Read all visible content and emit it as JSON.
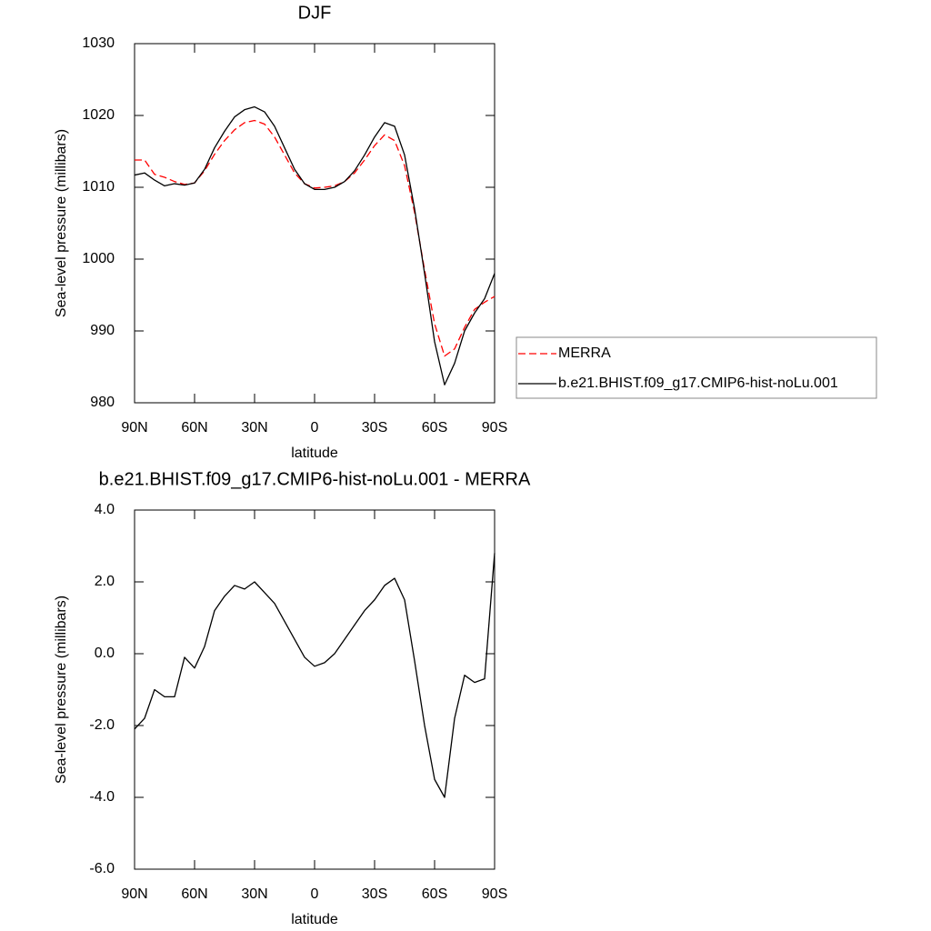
{
  "chart_data": [
    {
      "type": "line",
      "title": "DJF",
      "xlabel": "latitude",
      "ylabel": "Sea-level pressure (millibars)",
      "x": [
        90,
        85,
        80,
        75,
        70,
        65,
        60,
        55,
        50,
        45,
        40,
        35,
        30,
        25,
        20,
        15,
        10,
        5,
        0,
        -5,
        -10,
        -15,
        -20,
        -25,
        -30,
        -35,
        -40,
        -45,
        -50,
        -55,
        -60,
        -65,
        -70,
        -75,
        -80,
        -85,
        -90
      ],
      "xlim": [
        90,
        -90
      ],
      "xticks": [
        {
          "value": 90,
          "label": "90N"
        },
        {
          "value": 60,
          "label": "60N"
        },
        {
          "value": 30,
          "label": "30N"
        },
        0,
        {
          "value": -30,
          "label": "30S"
        },
        {
          "value": -60,
          "label": "60S"
        },
        {
          "value": -90,
          "label": "90S"
        }
      ],
      "ylim": [
        980,
        1030
      ],
      "yticks": [
        980,
        990,
        1000,
        1010,
        1020,
        1030
      ],
      "legend": "right",
      "series": [
        {
          "name": "MERRA",
          "color": "#ff0000",
          "dash": true,
          "values": [
            1013.8,
            1013.8,
            1011.8,
            1011.4,
            1010.8,
            1010.4,
            1010.6,
            1012.3,
            1014.6,
            1016.5,
            1018.0,
            1019.0,
            1019.3,
            1018.8,
            1017.0,
            1014.5,
            1012.0,
            1010.5,
            1009.9,
            1010.0,
            1010.2,
            1010.8,
            1012.0,
            1013.8,
            1015.8,
            1017.3,
            1016.5,
            1013.0,
            1006.5,
            998.5,
            991.0,
            986.5,
            987.5,
            990.5,
            993.0,
            994.0,
            994.8
          ]
        },
        {
          "name": "b.e21.BHIST.f09_g17.CMIP6-hist-noLu.001",
          "color": "#000000",
          "dash": false,
          "values": [
            1011.7,
            1012.0,
            1011.0,
            1010.2,
            1010.5,
            1010.3,
            1010.6,
            1012.5,
            1015.5,
            1017.8,
            1019.8,
            1020.8,
            1021.2,
            1020.5,
            1018.5,
            1015.5,
            1012.5,
            1010.5,
            1009.7,
            1009.7,
            1010.0,
            1010.8,
            1012.3,
            1014.5,
            1017.0,
            1019.0,
            1018.5,
            1014.5,
            1007.0,
            998.0,
            988.5,
            982.5,
            985.5,
            990.0,
            992.5,
            994.5,
            998.0
          ]
        }
      ]
    },
    {
      "type": "line",
      "title": "b.e21.BHIST.f09_g17.CMIP6-hist-noLu.001 - MERRA",
      "xlabel": "latitude",
      "ylabel": "Sea-level pressure (millibars)",
      "x": [
        90,
        85,
        80,
        75,
        70,
        65,
        60,
        55,
        50,
        45,
        40,
        35,
        30,
        25,
        20,
        15,
        10,
        5,
        0,
        -5,
        -10,
        -15,
        -20,
        -25,
        -30,
        -35,
        -40,
        -45,
        -50,
        -55,
        -60,
        -65,
        -70,
        -75,
        -80,
        -85,
        -90
      ],
      "xlim": [
        90,
        -90
      ],
      "xticks": [
        {
          "value": 90,
          "label": "90N"
        },
        {
          "value": 60,
          "label": "60N"
        },
        {
          "value": 30,
          "label": "30N"
        },
        0,
        {
          "value": -30,
          "label": "30S"
        },
        {
          "value": -60,
          "label": "60S"
        },
        {
          "value": -90,
          "label": "90S"
        }
      ],
      "ylim": [
        -6,
        4
      ],
      "yticks": [
        {
          "value": -6,
          "label": "-6.0"
        },
        {
          "value": -4,
          "label": "-4.0"
        },
        {
          "value": -2,
          "label": "-2.0"
        },
        {
          "value": 0,
          "label": "0.0"
        },
        {
          "value": 2,
          "label": "2.0"
        },
        {
          "value": 4,
          "label": "4.0"
        }
      ],
      "series": [
        {
          "color": "#000000",
          "dash": false,
          "values": [
            -2.1,
            -1.8,
            -1.0,
            -1.2,
            -1.2,
            -0.1,
            -0.4,
            0.2,
            1.2,
            1.6,
            1.9,
            1.8,
            2.0,
            1.7,
            1.4,
            0.9,
            0.4,
            -0.1,
            -0.35,
            -0.25,
            0.0,
            0.4,
            0.8,
            1.2,
            1.5,
            1.9,
            2.1,
            1.5,
            -0.2,
            -2.0,
            -3.5,
            -4.0,
            -1.8,
            -0.6,
            -0.8,
            -0.7,
            2.8
          ]
        }
      ]
    }
  ]
}
